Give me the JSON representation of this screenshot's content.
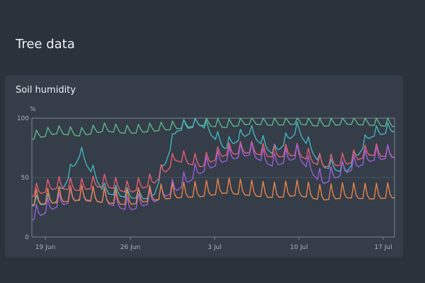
{
  "page": {
    "title": "Tree data"
  },
  "card": {
    "title": "Soil humidity"
  },
  "chart_data": {
    "type": "line",
    "title": "Soil humidity",
    "ylabel": "%",
    "ylim": [
      0,
      100
    ],
    "yticks": [
      "0",
      "50",
      "100"
    ],
    "xticks": [
      "19 Jun",
      "26 Jun",
      "3 Jul",
      "10 Jul",
      "17 Jul"
    ],
    "grid": true,
    "x": [
      "18 Jun",
      "20 Jun",
      "22 Jun",
      "24 Jun",
      "26 Jun",
      "28 Jun",
      "30 Jun",
      "2 Jul",
      "4 Jul",
      "6 Jul",
      "8 Jul",
      "10 Jul",
      "12 Jul",
      "14 Jul",
      "16 Jul",
      "18 Jul"
    ],
    "series": [
      {
        "color": "#5fb58a",
        "values": [
          83,
          88,
          86,
          90,
          88,
          90,
          92,
          95,
          93,
          96,
          95,
          96,
          94,
          96,
          95,
          94
        ]
      },
      {
        "color": "#45b3bd",
        "values": [
          27,
          30,
          70,
          38,
          34,
          33,
          90,
          95,
          75,
          88,
          70,
          90,
          60,
          55,
          85,
          90
        ]
      },
      {
        "color": "#e65d72",
        "values": [
          35,
          42,
          40,
          44,
          38,
          45,
          65,
          60,
          70,
          72,
          68,
          70,
          60,
          62,
          70,
          68
        ]
      },
      {
        "color": "#9b5fd8",
        "values": [
          15,
          26,
          33,
          30,
          23,
          30,
          40,
          55,
          65,
          70,
          60,
          68,
          45,
          55,
          65,
          68
        ]
      },
      {
        "color": "#e8834a",
        "values": [
          28,
          30,
          32,
          30,
          28,
          32,
          34,
          35,
          38,
          36,
          34,
          36,
          32,
          34,
          33,
          34
        ]
      }
    ]
  }
}
